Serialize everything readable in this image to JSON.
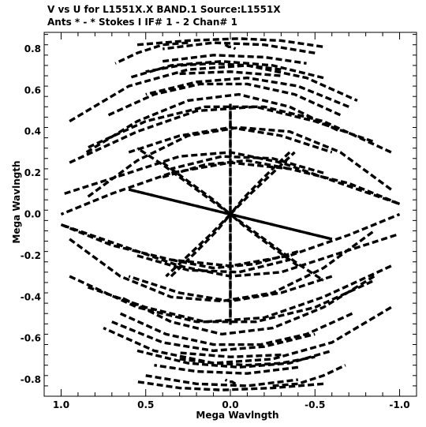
{
  "chart_data": {
    "type": "scatter",
    "title": "V vs U for L1551X.X BAND.1   Source:L1551X",
    "subtitle": "Ants * - *    Stokes I  IF# 1 - 2  Chan# 1",
    "xlabel": "Mega Wavlngth",
    "ylabel": "Mega Wavlngth",
    "xlim": [
      1.1,
      -1.1
    ],
    "ylim": [
      -0.88,
      0.88
    ],
    "x_ticks": [
      {
        "value": 1.0,
        "label": "1.0"
      },
      {
        "value": 0.5,
        "label": "0.5"
      },
      {
        "value": 0.0,
        "label": "0.0"
      },
      {
        "value": -0.5,
        "label": "-0.5"
      },
      {
        "value": -1.0,
        "label": "-1.0"
      }
    ],
    "y_ticks": [
      {
        "value": 0.8,
        "label": "0.8"
      },
      {
        "value": 0.6,
        "label": "0.6"
      },
      {
        "value": 0.4,
        "label": "0.4"
      },
      {
        "value": 0.2,
        "label": "0.2"
      },
      {
        "value": 0.0,
        "label": "0.0"
      },
      {
        "value": -0.2,
        "label": "-0.2"
      },
      {
        "value": -0.4,
        "label": "-0.4"
      },
      {
        "value": -0.6,
        "label": "-0.6"
      },
      {
        "value": -0.8,
        "label": "-0.8"
      }
    ],
    "grid": false,
    "marker_color": "#000000",
    "series": [
      {
        "tracks": [
          {
            "x": [
              0.03,
              0.01,
              -0.01,
              -0.03
            ],
            "y": [
              0.82,
              0.81,
              0.81,
              0.8
            ]
          },
          {
            "x": [
              0.55,
              0.25,
              -0.05,
              -0.3,
              -0.55
            ],
            "y": [
              0.82,
              0.84,
              0.85,
              0.84,
              0.81
            ]
          },
          {
            "x": [
              0.4,
              0.1,
              -0.2,
              -0.45
            ],
            "y": [
              0.74,
              0.77,
              0.76,
              0.73
            ]
          },
          {
            "x": [
              0.3,
              0.0,
              -0.3
            ],
            "y": [
              0.68,
              0.69,
              0.67
            ]
          },
          {
            "x": [
              0.95,
              0.6,
              0.25,
              -0.1,
              -0.45,
              -0.75
            ],
            "y": [
              0.45,
              0.62,
              0.7,
              0.72,
              0.66,
              0.55
            ]
          },
          {
            "x": [
              0.95,
              0.55,
              0.2,
              -0.15,
              -0.5,
              -0.85
            ],
            "y": [
              0.25,
              0.4,
              0.5,
              0.52,
              0.45,
              0.35
            ]
          },
          {
            "x": [
              0.6,
              0.3,
              0.0,
              -0.3,
              -0.6
            ],
            "y": [
              0.3,
              0.38,
              0.42,
              0.38,
              0.3
            ]
          },
          {
            "x": [
              0.4,
              0.15,
              -0.1,
              -0.35
            ],
            "y": [
              0.18,
              0.24,
              0.26,
              0.22
            ]
          },
          {
            "x": [
              0.98,
              0.6,
              0.3,
              0.0,
              -0.3,
              -0.65,
              -1.0
            ],
            "y": [
              0.1,
              0.2,
              0.28,
              0.3,
              0.25,
              0.15,
              0.05
            ]
          },
          {
            "x": [
              1.0,
              0.7,
              0.35,
              0.0,
              -0.35,
              -0.7,
              -1.0
            ],
            "y": [
              -0.05,
              -0.15,
              -0.22,
              -0.25,
              -0.2,
              -0.1,
              0.0
            ]
          },
          {
            "x": [
              0.55,
              0.25,
              -0.05,
              -0.35
            ],
            "y": [
              -0.2,
              -0.27,
              -0.28,
              -0.22
            ]
          },
          {
            "x": [
              0.95,
              0.55,
              0.2,
              -0.15,
              -0.5,
              -0.85
            ],
            "y": [
              -0.3,
              -0.45,
              -0.52,
              -0.52,
              -0.45,
              -0.32
            ]
          },
          {
            "x": [
              0.7,
              0.4,
              0.1,
              -0.2,
              -0.5
            ],
            "y": [
              -0.52,
              -0.62,
              -0.66,
              -0.64,
              -0.58
            ]
          },
          {
            "x": [
              0.55,
              0.25,
              -0.05,
              -0.35,
              -0.6
            ],
            "y": [
              -0.66,
              -0.72,
              -0.74,
              -0.72,
              -0.66
            ]
          },
          {
            "x": [
              0.5,
              0.2,
              -0.1,
              -0.4
            ],
            "y": [
              -0.78,
              -0.82,
              -0.83,
              -0.8
            ]
          },
          {
            "x": [
              0.3,
              0.1,
              -0.1,
              -0.3,
              -0.5
            ],
            "y": [
              -0.7,
              -0.72,
              -0.73,
              -0.72,
              -0.69
            ]
          },
          {
            "x": [
              -0.25,
              -0.4,
              -0.55,
              -0.68
            ],
            "y": [
              -0.83,
              -0.82,
              -0.78,
              -0.73
            ]
          },
          {
            "x": [
              0.95,
              0.65,
              0.35,
              0.05,
              -0.25,
              -0.55,
              -0.85
            ],
            "y": [
              -0.12,
              -0.3,
              -0.4,
              -0.42,
              -0.38,
              -0.26,
              -0.08
            ]
          },
          {
            "x": [
              0.85,
              0.55,
              0.25,
              -0.05,
              -0.35,
              -0.65
            ],
            "y": [
              0.3,
              0.45,
              0.55,
              0.58,
              0.52,
              0.4
            ]
          },
          {
            "x": [
              0.72,
              0.45,
              0.18,
              -0.1,
              -0.38,
              -0.65
            ],
            "y": [
              0.48,
              0.58,
              0.63,
              0.63,
              0.58,
              0.48
            ]
          }
        ]
      },
      {
        "tracks": [
          {
            "x": [
              0.4,
              0.25,
              0.1,
              0.0
            ],
            "y": [
              0.25,
              0.16,
              0.07,
              0.0
            ]
          },
          {
            "x": [
              0.0,
              -0.2,
              -0.4,
              -0.55
            ],
            "y": [
              0.0,
              -0.12,
              -0.24,
              -0.32
            ]
          },
          {
            "x": [
              0.6,
              0.4,
              0.2,
              0.0
            ],
            "y": [
              0.12,
              0.08,
              0.04,
              0.0
            ]
          },
          {
            "x": [
              0.0,
              -0.2,
              -0.4,
              -0.6
            ],
            "y": [
              0.0,
              -0.04,
              -0.08,
              -0.12
            ]
          },
          {
            "x": [
              0.0,
              0.0,
              0.0,
              0.0
            ],
            "y": [
              0.5,
              0.3,
              0.1,
              0.0
            ]
          },
          {
            "x": [
              0.0,
              0.0,
              0.0,
              0.0
            ],
            "y": [
              0.0,
              -0.15,
              -0.35,
              -0.55
            ]
          },
          {
            "x": [
              -0.35,
              -0.2,
              -0.08,
              0.0
            ],
            "y": [
              0.3,
              0.18,
              0.08,
              0.0
            ]
          },
          {
            "x": [
              0.0,
              0.12,
              0.25,
              0.38
            ],
            "y": [
              0.0,
              -0.1,
              -0.2,
              -0.3
            ]
          }
        ]
      }
    ]
  }
}
